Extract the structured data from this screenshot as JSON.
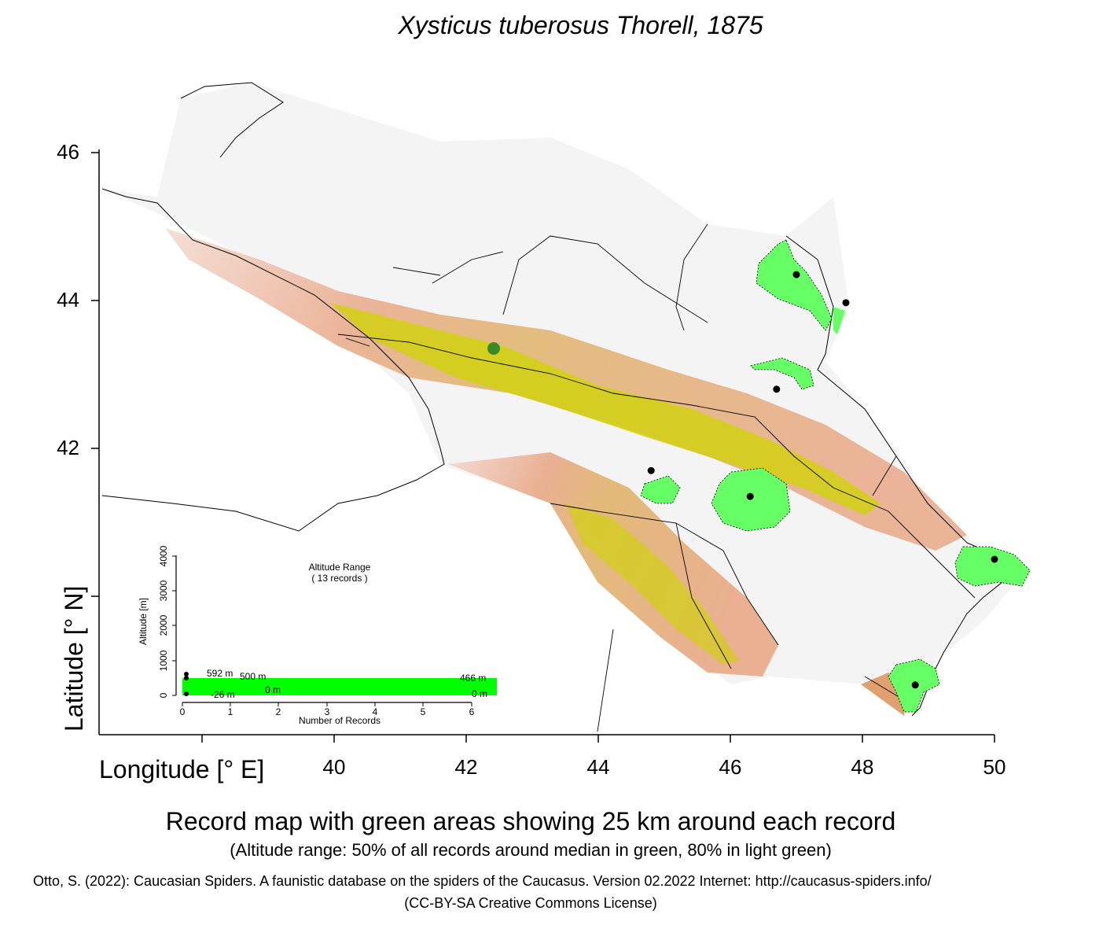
{
  "title": "Xysticus tuberosus Thorell, 1875",
  "axes": {
    "y_label": "Latitude [° N]",
    "x_label": "Longitude [° E]",
    "y_ticks": [
      "46",
      "44",
      "42"
    ],
    "x_ticks": [
      "40",
      "42",
      "44",
      "46",
      "48",
      "50"
    ]
  },
  "records": [
    {
      "lon": 47.0,
      "lat": 44.35
    },
    {
      "lon": 47.75,
      "lat": 43.97
    },
    {
      "lon": 46.7,
      "lat": 42.8
    },
    {
      "lon": 44.8,
      "lat": 41.7
    },
    {
      "lon": 46.3,
      "lat": 41.35
    },
    {
      "lon": 50.0,
      "lat": 40.5
    },
    {
      "lon": 48.8,
      "lat": 38.8
    }
  ],
  "colors": {
    "record_area": "#66ff66",
    "altitude_bar": "#00ff00",
    "lowland": "#f2f2f2",
    "mid": "#e8a887",
    "high": "#d9d900"
  },
  "inset": {
    "title": "Altitude Range",
    "subtitle": "( 13 records )",
    "y_label": "Altitude [m]",
    "x_label": "Number of Records",
    "y_ticks": [
      "0",
      "1000",
      "2000",
      "3000",
      "4000"
    ],
    "x_ticks": [
      "0",
      "1",
      "2",
      "3",
      "4",
      "5",
      "6"
    ],
    "labels": {
      "max_alt": "592  m",
      "upper_50": "500  m",
      "upper_right": "466  m",
      "lower_50": "0  m",
      "lower_right": "0  m",
      "min_alt": "-26  m"
    }
  },
  "caption": "Record map with green areas showing 25 km around each record",
  "subcaption": "(Altitude range: 50% of all records around median in green, 80% in light green)",
  "citation": "Otto, S. (2022): Caucasian Spiders. A faunistic database on the spiders of the Caucasus. Version 02.2022 Internet: http://caucasus-spiders.info/",
  "license": "(CC-BY-SA Creative Commons License)"
}
